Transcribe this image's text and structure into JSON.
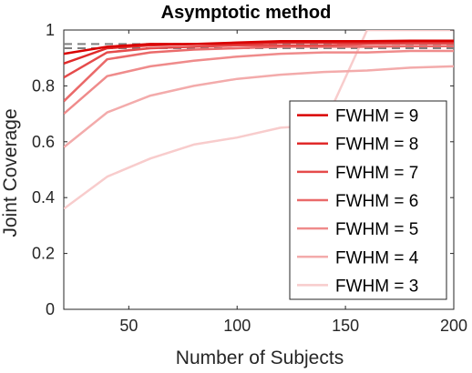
{
  "chart_data": {
    "type": "line",
    "title": "Asymptotic method",
    "xlabel": "Number of Subjects",
    "ylabel": "Joint Coverage",
    "xlim": [
      20,
      200
    ],
    "ylim": [
      0,
      1
    ],
    "xticks": [
      50,
      100,
      150,
      200
    ],
    "yticks": [
      0,
      0.2,
      0.4,
      0.6,
      0.8,
      1
    ],
    "ytick_labels": [
      "0",
      "0.2",
      "0.4",
      "0.6",
      "0.8",
      "1"
    ],
    "grid": false,
    "legend_position": "bottom-right",
    "x": [
      20,
      40,
      60,
      80,
      100,
      120,
      140,
      160,
      180,
      200
    ],
    "reference_lines": [
      {
        "y": 0.95,
        "color": "#7f7f7f",
        "style": "dashed"
      },
      {
        "y": 0.935,
        "color": "#7f7f7f",
        "style": "dashed"
      }
    ],
    "series": [
      {
        "name": "FWHM = 9",
        "color": "#d90000",
        "values": [
          0.915,
          0.94,
          0.95,
          0.95,
          0.955,
          0.96,
          0.96,
          0.96,
          0.962,
          0.962
        ]
      },
      {
        "name": "FWHM = 8",
        "color": "#e02a2a",
        "values": [
          0.88,
          0.935,
          0.945,
          0.95,
          0.95,
          0.955,
          0.955,
          0.955,
          0.958,
          0.958
        ]
      },
      {
        "name": "FWHM = 7",
        "color": "#e54b4b",
        "values": [
          0.83,
          0.92,
          0.935,
          0.94,
          0.945,
          0.945,
          0.945,
          0.95,
          0.952,
          0.952
        ]
      },
      {
        "name": "FWHM = 6",
        "color": "#ea6a6a",
        "values": [
          0.745,
          0.895,
          0.92,
          0.93,
          0.935,
          0.94,
          0.94,
          0.94,
          0.942,
          0.942
        ]
      },
      {
        "name": "FWHM = 5",
        "color": "#ef8b8b",
        "values": [
          0.7,
          0.835,
          0.87,
          0.89,
          0.905,
          0.915,
          0.92,
          0.92,
          0.925,
          0.925
        ]
      },
      {
        "name": "FWHM = 4",
        "color": "#f3abab",
        "values": [
          0.58,
          0.705,
          0.765,
          0.8,
          0.825,
          0.84,
          0.85,
          0.855,
          0.865,
          0.87
        ]
      },
      {
        "name": "FWHM = 3",
        "color": "#f8cccc",
        "values": [
          0.36,
          0.475,
          0.54,
          0.59,
          0.615,
          0.65,
          0.66,
          1.0,
          1.0,
          1.0
        ]
      }
    ]
  }
}
